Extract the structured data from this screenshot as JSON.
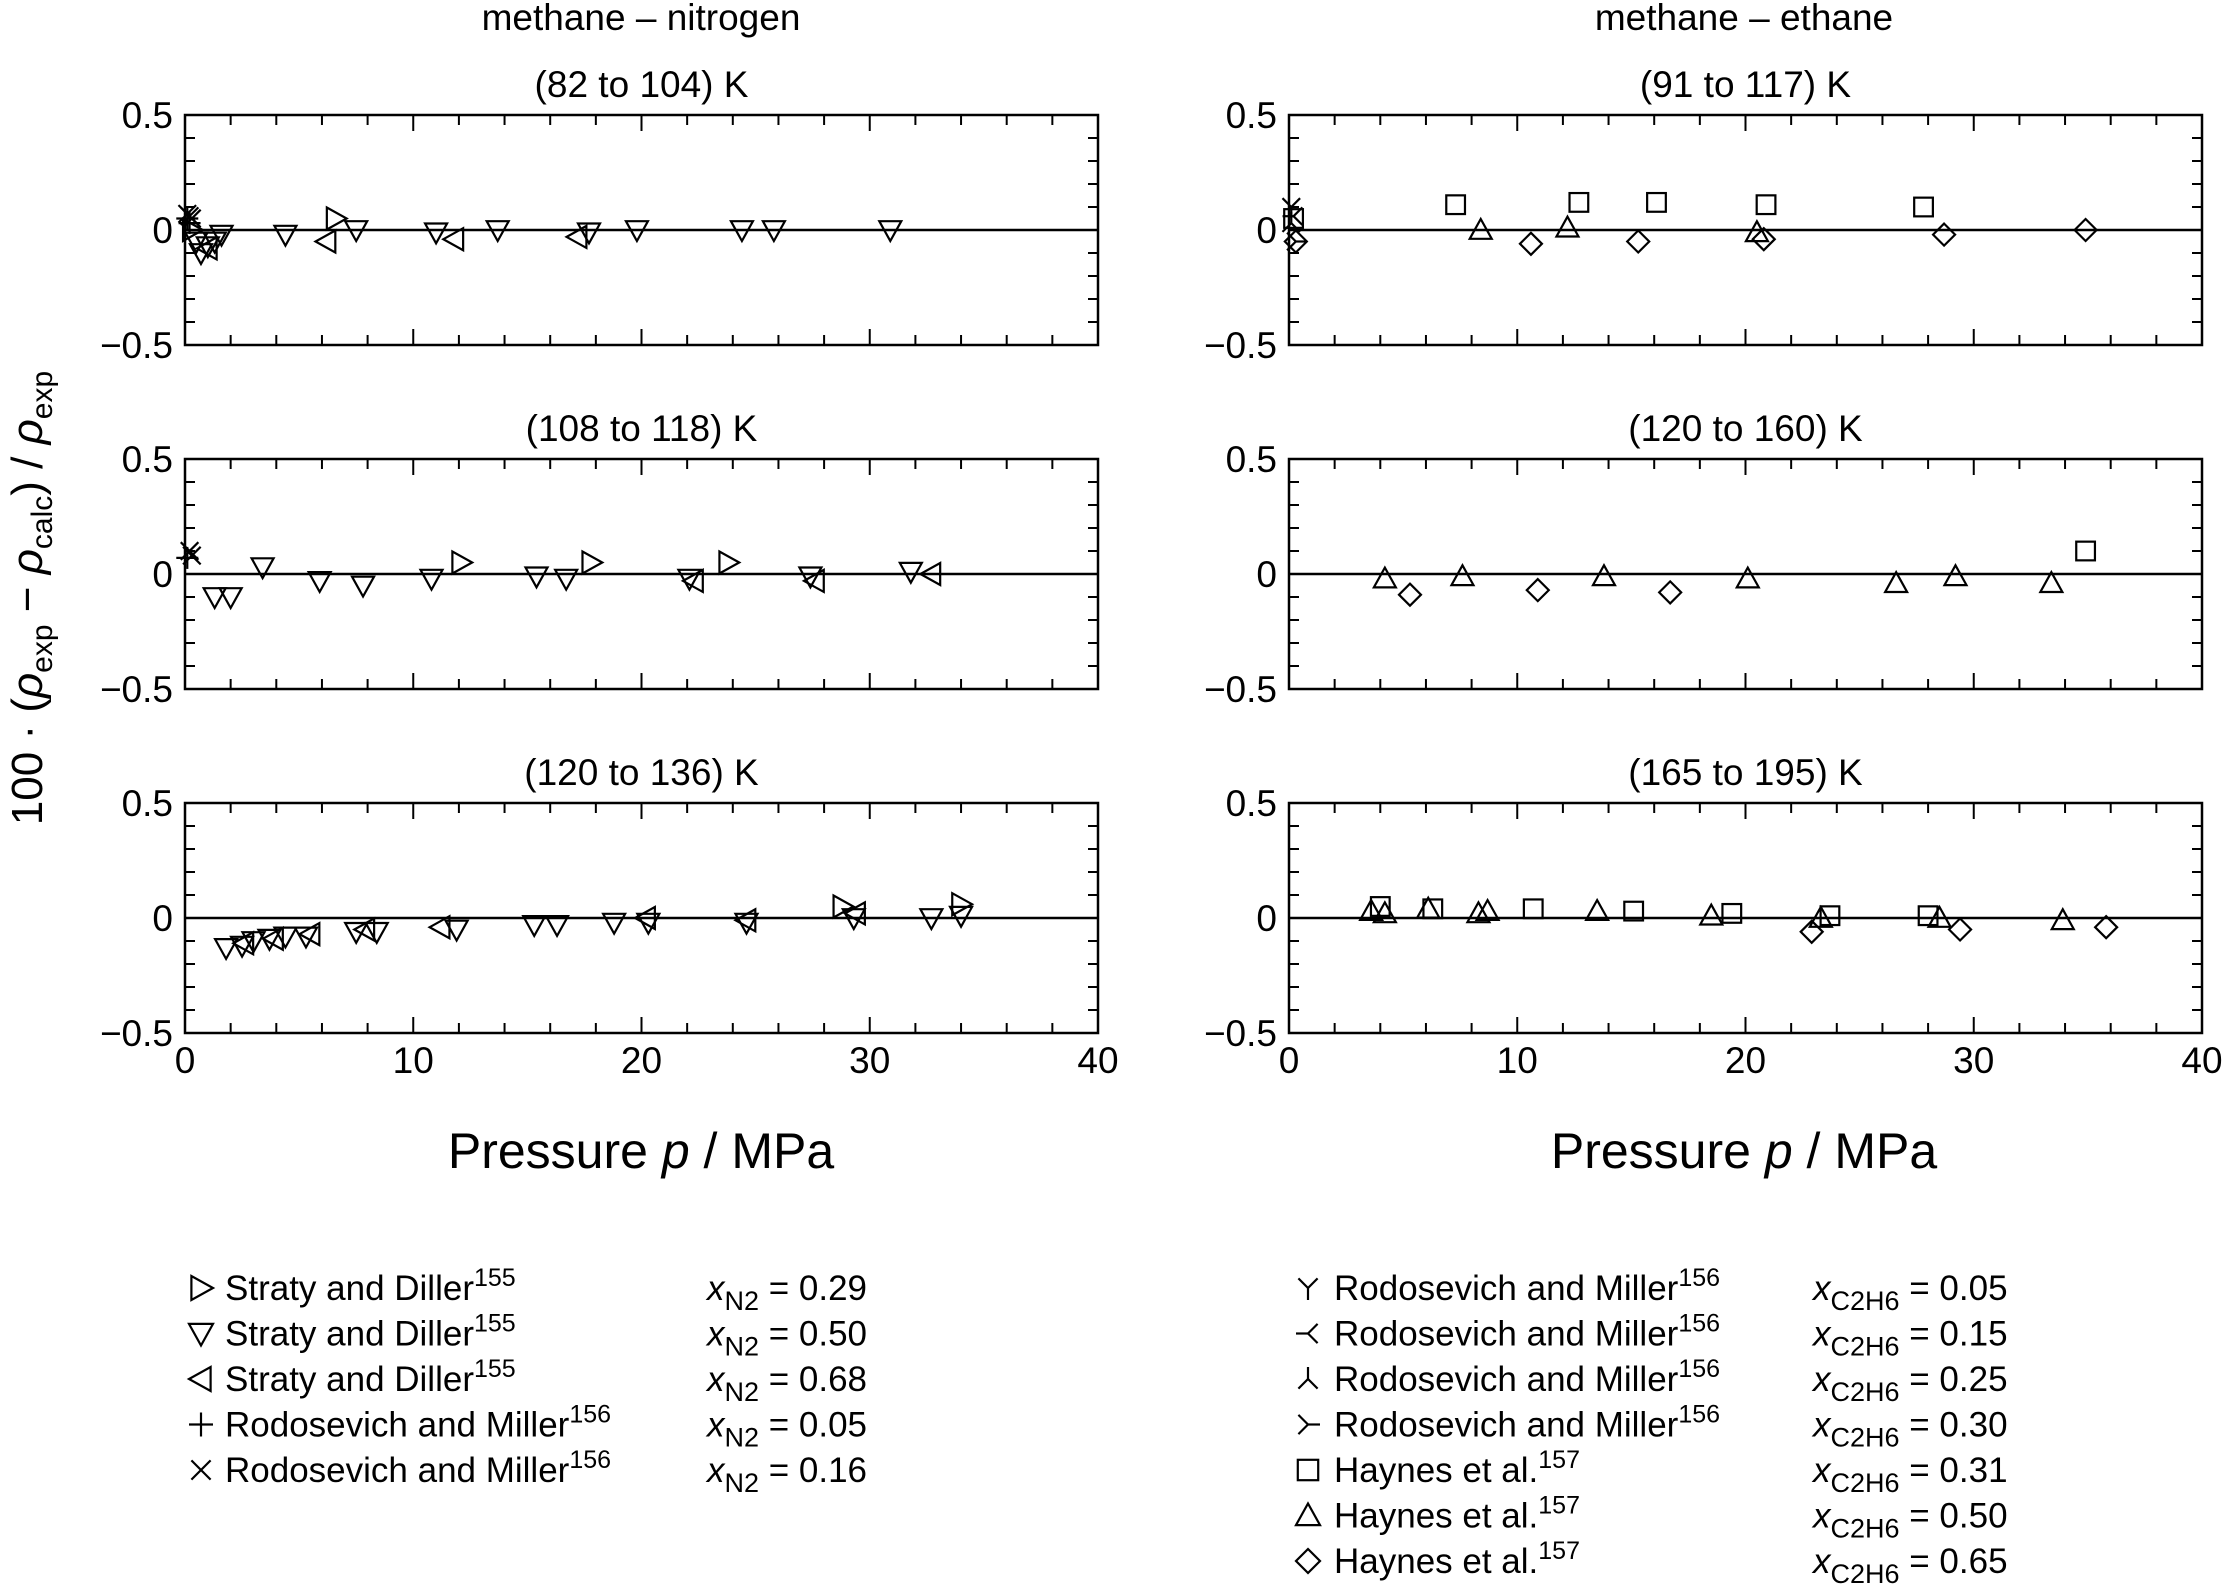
{
  "figure": {
    "ylabel_prefix": "100 · (",
    "ylabel_rho": "ρ",
    "ylabel_exp": "exp",
    "ylabel_minus": " − ",
    "ylabel_calc": "calc",
    "ylabel_close": ") / ",
    "xlabel_left": "Pressure ",
    "xlabel_var": "p",
    "xlabel_unit": " / MPa"
  },
  "columns": [
    {
      "title": "methane – nitrogen"
    },
    {
      "title": "methane – ethane"
    }
  ],
  "axes": {
    "ylim": [
      -0.5,
      0.5
    ],
    "xlim": [
      0,
      40
    ],
    "y_ticks": [
      0.5,
      0,
      -0.5
    ],
    "y_tick_labels": [
      "0.5",
      "0",
      "−0.5"
    ],
    "x_ticks": [
      0,
      10,
      20,
      30,
      40
    ],
    "x_tick_labels": [
      "0",
      "10",
      "20",
      "30",
      "40"
    ]
  },
  "legend_left": [
    {
      "marker": "tri-right",
      "source": "Straty and Diller",
      "ref": "155",
      "var": "x",
      "sub": "N2",
      "value": " = 0.29"
    },
    {
      "marker": "tri-down",
      "source": "Straty and Diller",
      "ref": "155",
      "var": "x",
      "sub": "N2",
      "value": " = 0.50"
    },
    {
      "marker": "tri-left",
      "source": "Straty and Diller",
      "ref": "155",
      "var": "x",
      "sub": "N2",
      "value": " = 0.68"
    },
    {
      "marker": "plus",
      "source": "Rodosevich and Miller",
      "ref": "156",
      "var": "x",
      "sub": "N2",
      "value": " = 0.05"
    },
    {
      "marker": "cross",
      "source": "Rodosevich and Miller",
      "ref": "156",
      "var": "x",
      "sub": "N2",
      "value": " = 0.16"
    }
  ],
  "legend_right": [
    {
      "marker": "y-up",
      "source": "Rodosevich and Miller",
      "ref": "156",
      "var": "x",
      "sub": "C2H6",
      "value": " = 0.05"
    },
    {
      "marker": "y-right",
      "source": "Rodosevich and Miller",
      "ref": "156",
      "var": "x",
      "sub": "C2H6",
      "value": " = 0.15"
    },
    {
      "marker": "y-down",
      "source": "Rodosevich and Miller",
      "ref": "156",
      "var": "x",
      "sub": "C2H6",
      "value": " = 0.25"
    },
    {
      "marker": "y-left",
      "source": "Rodosevich and Miller",
      "ref": "156",
      "var": "x",
      "sub": "C2H6",
      "value": " = 0.30"
    },
    {
      "marker": "square",
      "source": "Haynes et al.",
      "ref": "157",
      "var": "x",
      "sub": "C2H6",
      "value": " = 0.31"
    },
    {
      "marker": "triangle",
      "source": "Haynes et al.",
      "ref": "157",
      "var": "x",
      "sub": "C2H6",
      "value": " = 0.50"
    },
    {
      "marker": "diamond",
      "source": "Haynes et al.",
      "ref": "157",
      "var": "x",
      "sub": "C2H6",
      "value": " = 0.65"
    }
  ],
  "chart_data": [
    {
      "type": "scatter",
      "title": "(82 to 104) K",
      "column": 0,
      "xlim": [
        0,
        40
      ],
      "ylim": [
        -0.5,
        0.5
      ],
      "series": [
        {
          "marker": "tri-right",
          "points": [
            [
              0.3,
              0.0
            ],
            [
              6.6,
              0.05
            ]
          ]
        },
        {
          "marker": "tri-down",
          "points": [
            [
              0.5,
              -0.05
            ],
            [
              0.7,
              -0.1
            ],
            [
              1.0,
              -0.07
            ],
            [
              1.3,
              -0.05
            ],
            [
              1.6,
              -0.02
            ],
            [
              4.4,
              -0.02
            ],
            [
              7.5,
              0.0
            ],
            [
              11.0,
              -0.01
            ],
            [
              13.7,
              0.0
            ],
            [
              17.7,
              -0.01
            ],
            [
              19.8,
              0.0
            ],
            [
              24.4,
              0.0
            ],
            [
              25.8,
              0.0
            ],
            [
              30.9,
              0.0
            ]
          ]
        },
        {
          "marker": "tri-left",
          "points": [
            [
              1.0,
              -0.08
            ],
            [
              6.2,
              -0.05
            ],
            [
              11.8,
              -0.04
            ],
            [
              17.2,
              -0.03
            ]
          ]
        },
        {
          "marker": "plus",
          "points": [
            [
              0.1,
              0.05
            ],
            [
              0.2,
              0.03
            ]
          ]
        },
        {
          "marker": "cross",
          "points": [
            [
              0.1,
              0.07
            ],
            [
              0.3,
              0.05
            ],
            [
              0.2,
              0.06
            ]
          ]
        }
      ]
    },
    {
      "type": "scatter",
      "title": "(108 to 118) K",
      "column": 0,
      "xlim": [
        0,
        40
      ],
      "ylim": [
        -0.5,
        0.5
      ],
      "series": [
        {
          "marker": "tri-right",
          "points": [
            [
              12.1,
              0.05
            ],
            [
              17.8,
              0.05
            ],
            [
              23.8,
              0.05
            ]
          ]
        },
        {
          "marker": "tri-down",
          "points": [
            [
              1.3,
              -0.1
            ],
            [
              2.0,
              -0.1
            ],
            [
              3.4,
              0.03
            ],
            [
              5.9,
              -0.03
            ],
            [
              7.8,
              -0.05
            ],
            [
              10.8,
              -0.02
            ],
            [
              15.4,
              -0.01
            ],
            [
              16.7,
              -0.02
            ],
            [
              22.1,
              -0.02
            ],
            [
              27.4,
              -0.01
            ],
            [
              31.8,
              0.01
            ]
          ]
        },
        {
          "marker": "tri-left",
          "points": [
            [
              22.3,
              -0.03
            ],
            [
              27.6,
              -0.03
            ],
            [
              32.7,
              0.0
            ]
          ]
        },
        {
          "marker": "cross",
          "points": [
            [
              0.2,
              0.1
            ],
            [
              0.3,
              0.08
            ]
          ]
        },
        {
          "marker": "plus",
          "points": [
            [
              0.1,
              0.07
            ]
          ]
        }
      ]
    },
    {
      "type": "scatter",
      "title": "(120 to 136) K",
      "column": 0,
      "xlim": [
        0,
        40
      ],
      "ylim": [
        -0.5,
        0.5
      ],
      "series": [
        {
          "marker": "tri-right",
          "points": [
            [
              28.8,
              0.05
            ],
            [
              34.0,
              0.06
            ]
          ]
        },
        {
          "marker": "tri-down",
          "points": [
            [
              1.8,
              -0.13
            ],
            [
              2.5,
              -0.12
            ],
            [
              3.0,
              -0.1
            ],
            [
              3.7,
              -0.09
            ],
            [
              4.4,
              -0.08
            ],
            [
              5.3,
              -0.08
            ],
            [
              7.5,
              -0.06
            ],
            [
              8.4,
              -0.06
            ],
            [
              11.9,
              -0.05
            ],
            [
              15.3,
              -0.03
            ],
            [
              16.3,
              -0.03
            ],
            [
              18.8,
              -0.02
            ],
            [
              20.3,
              -0.02
            ],
            [
              24.6,
              -0.02
            ],
            [
              29.3,
              0.0
            ],
            [
              32.7,
              0.0
            ],
            [
              34.0,
              0.01
            ]
          ]
        },
        {
          "marker": "tri-left",
          "points": [
            [
              2.6,
              -0.11
            ],
            [
              3.9,
              -0.09
            ],
            [
              5.5,
              -0.07
            ],
            [
              7.9,
              -0.05
            ],
            [
              11.2,
              -0.04
            ],
            [
              20.2,
              0.0
            ],
            [
              24.6,
              -0.01
            ],
            [
              29.4,
              0.02
            ]
          ]
        }
      ]
    },
    {
      "type": "scatter",
      "title": "(91 to 117) K",
      "column": 1,
      "xlim": [
        0,
        40
      ],
      "ylim": [
        -0.5,
        0.5
      ],
      "series": [
        {
          "marker": "y-up",
          "points": [
            [
              0.1,
              0.1
            ]
          ]
        },
        {
          "marker": "y-right",
          "points": [
            [
              0.2,
              0.06
            ]
          ]
        },
        {
          "marker": "y-down",
          "points": [
            [
              0.1,
              0.03
            ]
          ]
        },
        {
          "marker": "y-left",
          "points": [
            [
              0.3,
              -0.05
            ]
          ]
        },
        {
          "marker": "square",
          "points": [
            [
              0.2,
              0.05
            ],
            [
              7.3,
              0.11
            ],
            [
              12.7,
              0.12
            ],
            [
              16.1,
              0.12
            ],
            [
              20.9,
              0.11
            ],
            [
              27.8,
              0.1
            ]
          ]
        },
        {
          "marker": "triangle",
          "points": [
            [
              8.4,
              0.0
            ],
            [
              12.2,
              0.01
            ],
            [
              20.5,
              -0.01
            ]
          ]
        },
        {
          "marker": "diamond",
          "points": [
            [
              0.3,
              -0.05
            ],
            [
              10.6,
              -0.06
            ],
            [
              15.3,
              -0.05
            ],
            [
              20.8,
              -0.04
            ],
            [
              28.7,
              -0.02
            ],
            [
              34.9,
              0.0
            ]
          ]
        }
      ]
    },
    {
      "type": "scatter",
      "title": "(120 to 160) K",
      "column": 1,
      "xlim": [
        0,
        40
      ],
      "ylim": [
        -0.5,
        0.5
      ],
      "series": [
        {
          "marker": "square",
          "points": [
            [
              34.9,
              0.1
            ]
          ]
        },
        {
          "marker": "triangle",
          "points": [
            [
              4.2,
              -0.02
            ],
            [
              7.6,
              -0.01
            ],
            [
              13.8,
              -0.01
            ],
            [
              20.1,
              -0.02
            ],
            [
              26.6,
              -0.04
            ],
            [
              29.2,
              -0.01
            ],
            [
              33.4,
              -0.04
            ]
          ]
        },
        {
          "marker": "diamond",
          "points": [
            [
              5.3,
              -0.09
            ],
            [
              10.9,
              -0.07
            ],
            [
              16.7,
              -0.08
            ]
          ]
        }
      ]
    },
    {
      "type": "scatter",
      "title": "(165 to 195) K",
      "column": 1,
      "xlim": [
        0,
        40
      ],
      "ylim": [
        -0.5,
        0.5
      ],
      "series": [
        {
          "marker": "square",
          "points": [
            [
              4.0,
              0.05
            ],
            [
              6.3,
              0.04
            ],
            [
              10.7,
              0.04
            ],
            [
              15.1,
              0.03
            ],
            [
              19.4,
              0.02
            ],
            [
              23.7,
              0.01
            ],
            [
              28.0,
              0.01
            ]
          ]
        },
        {
          "marker": "triangle",
          "points": [
            [
              3.6,
              0.03
            ],
            [
              4.2,
              0.02
            ],
            [
              6.1,
              0.04
            ],
            [
              8.3,
              0.02
            ],
            [
              8.7,
              0.03
            ],
            [
              13.5,
              0.03
            ],
            [
              18.5,
              0.01
            ],
            [
              23.3,
              0.0
            ],
            [
              28.5,
              0.0
            ],
            [
              33.9,
              -0.01
            ]
          ]
        },
        {
          "marker": "diamond",
          "points": [
            [
              22.9,
              -0.06
            ],
            [
              29.4,
              -0.05
            ],
            [
              35.8,
              -0.04
            ]
          ]
        }
      ]
    }
  ]
}
